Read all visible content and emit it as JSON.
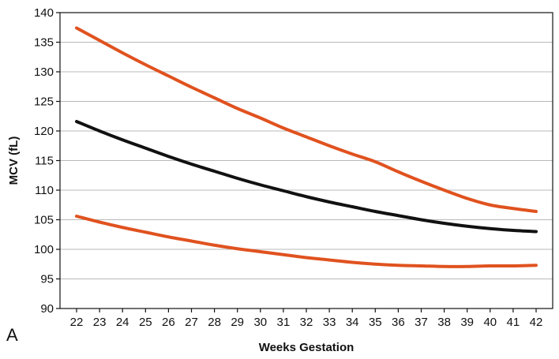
{
  "panel_label": "A",
  "chart_data": {
    "type": "line",
    "title": "",
    "xlabel": "Weeks Gestation",
    "ylabel": "MCV (fL)",
    "xlim": [
      22,
      42
    ],
    "ylim": [
      90,
      140
    ],
    "x_ticks": [
      22,
      23,
      24,
      25,
      26,
      27,
      28,
      29,
      30,
      31,
      32,
      33,
      34,
      35,
      36,
      37,
      38,
      39,
      40,
      41,
      42
    ],
    "y_ticks": [
      90,
      95,
      100,
      105,
      110,
      115,
      120,
      125,
      130,
      135,
      140
    ],
    "grid": "horizontal",
    "legend": "none",
    "x": [
      22,
      23,
      24,
      25,
      26,
      27,
      28,
      29,
      30,
      31,
      32,
      33,
      34,
      35,
      36,
      37,
      38,
      39,
      40,
      41,
      42
    ],
    "series": [
      {
        "color": "#e0521f",
        "values": [
          137.4,
          135.3,
          133.2,
          131.2,
          129.3,
          127.4,
          125.6,
          123.8,
          122.2,
          120.5,
          119.0,
          117.5,
          116.1,
          114.8,
          113.1,
          111.5,
          110.0,
          108.6,
          107.5,
          106.9,
          106.4
        ]
      },
      {
        "color": "#111111",
        "values": [
          121.6,
          120.0,
          118.5,
          117.1,
          115.7,
          114.4,
          113.2,
          112.0,
          110.9,
          109.9,
          108.9,
          108.0,
          107.2,
          106.4,
          105.7,
          105.0,
          104.4,
          103.9,
          103.5,
          103.2,
          103.0
        ]
      },
      {
        "color": "#e0521f",
        "values": [
          105.6,
          104.6,
          103.7,
          102.9,
          102.1,
          101.4,
          100.7,
          100.1,
          99.6,
          99.1,
          98.6,
          98.2,
          97.8,
          97.5,
          97.3,
          97.2,
          97.1,
          97.1,
          97.2,
          97.2,
          97.3
        ]
      }
    ]
  }
}
